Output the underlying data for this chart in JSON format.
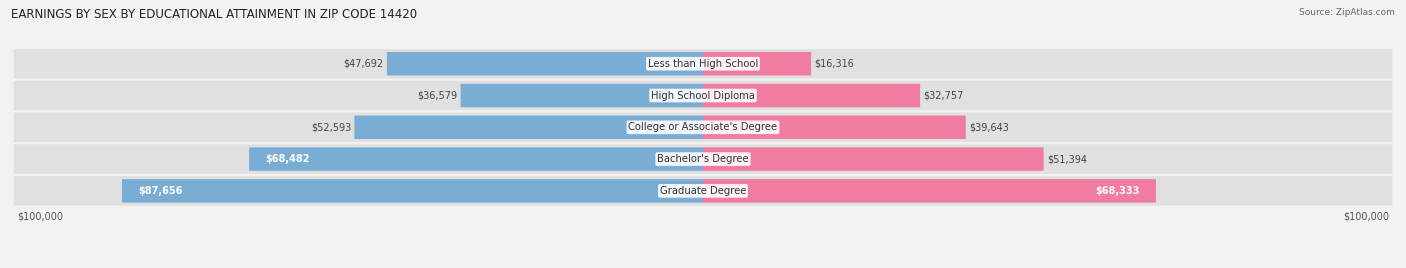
{
  "title": "EARNINGS BY SEX BY EDUCATIONAL ATTAINMENT IN ZIP CODE 14420",
  "source": "Source: ZipAtlas.com",
  "categories": [
    "Less than High School",
    "High School Diploma",
    "College or Associate's Degree",
    "Bachelor's Degree",
    "Graduate Degree"
  ],
  "male_values": [
    47692,
    36579,
    52593,
    68482,
    87656
  ],
  "female_values": [
    16316,
    32757,
    39643,
    51394,
    68333
  ],
  "male_color": "#7aadd4",
  "female_color": "#f07ca0",
  "row_bg_color": "#e0e0e0",
  "max_value": 100000,
  "x_tick_labels": [
    "$100,000",
    "$100,000"
  ],
  "title_fontsize": 8.5,
  "source_fontsize": 6.5,
  "label_fontsize": 7.2,
  "value_fontsize": 7.0,
  "background_color": "#f2f2f2"
}
